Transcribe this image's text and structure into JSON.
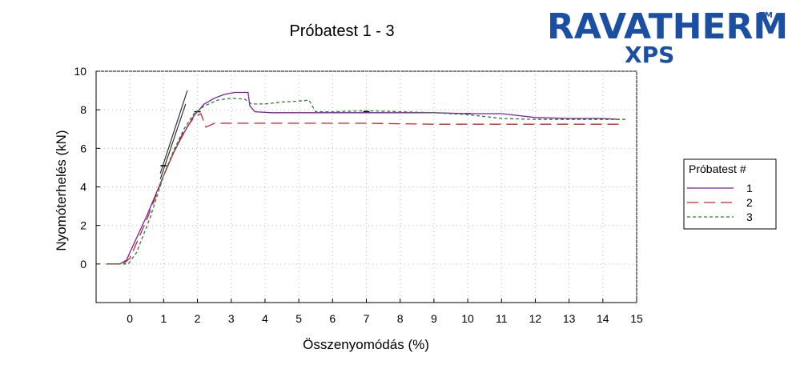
{
  "logo": {
    "brand": "RAVATHERM",
    "trademark": "TM",
    "product": "XPS",
    "color": "#1b4fa3"
  },
  "chart_data": {
    "type": "line",
    "title": "Próbatest 1 - 3",
    "xlabel": "Összenyomódás (%)",
    "ylabel": "Nyomóterhelés (kN)",
    "xlim": [
      -1.0,
      15.0
    ],
    "ylim": [
      -2.0,
      10.0
    ],
    "x_ticks": [
      0,
      1,
      2,
      3,
      4,
      5,
      6,
      7,
      8,
      9,
      10,
      11,
      12,
      13,
      14,
      15
    ],
    "y_ticks": [
      0,
      2,
      4,
      6,
      8,
      10
    ],
    "grid": true,
    "legend": {
      "title": "Próbatest #",
      "placement": "right"
    },
    "series": [
      {
        "name": "1",
        "color": "#7b1fa2",
        "dash": "solid",
        "points": [
          [
            -0.7,
            0
          ],
          [
            -0.3,
            0
          ],
          [
            -0.1,
            0.2
          ],
          [
            0.0,
            0.6
          ],
          [
            0.5,
            2.5
          ],
          [
            1.0,
            4.6
          ],
          [
            1.3,
            5.8
          ],
          [
            1.6,
            6.8
          ],
          [
            1.9,
            7.7
          ],
          [
            2.2,
            8.3
          ],
          [
            2.5,
            8.6
          ],
          [
            2.8,
            8.8
          ],
          [
            3.1,
            8.9
          ],
          [
            3.5,
            8.9
          ],
          [
            3.55,
            8.2
          ],
          [
            3.7,
            7.9
          ],
          [
            4.2,
            7.85
          ],
          [
            5.5,
            7.85
          ],
          [
            7.0,
            7.85
          ],
          [
            9.0,
            7.85
          ],
          [
            10.0,
            7.8
          ],
          [
            11.0,
            7.8
          ],
          [
            12.0,
            7.6
          ],
          [
            13.0,
            7.55
          ],
          [
            14.0,
            7.55
          ],
          [
            14.5,
            7.5
          ]
        ]
      },
      {
        "name": "2",
        "color": "#c62828",
        "dash": "long",
        "points": [
          [
            -0.7,
            0
          ],
          [
            -0.2,
            0
          ],
          [
            0.0,
            0.3
          ],
          [
            0.5,
            2.3
          ],
          [
            1.0,
            4.6
          ],
          [
            1.3,
            5.8
          ],
          [
            1.6,
            6.9
          ],
          [
            1.9,
            7.6
          ],
          [
            2.1,
            7.8
          ],
          [
            2.25,
            7.1
          ],
          [
            2.5,
            7.3
          ],
          [
            3.5,
            7.3
          ],
          [
            5.0,
            7.3
          ],
          [
            7.0,
            7.3
          ],
          [
            9.0,
            7.25
          ],
          [
            11.0,
            7.25
          ],
          [
            14.5,
            7.25
          ]
        ]
      },
      {
        "name": "3",
        "color": "#2e7d32",
        "dash": "short",
        "points": [
          [
            -0.7,
            0
          ],
          [
            -0.05,
            0
          ],
          [
            0.2,
            0.6
          ],
          [
            0.6,
            2.4
          ],
          [
            1.0,
            4.6
          ],
          [
            1.3,
            5.9
          ],
          [
            1.6,
            7.0
          ],
          [
            1.9,
            7.8
          ],
          [
            2.2,
            8.2
          ],
          [
            2.6,
            8.5
          ],
          [
            3.0,
            8.6
          ],
          [
            3.4,
            8.55
          ],
          [
            3.6,
            8.3
          ],
          [
            4.0,
            8.3
          ],
          [
            4.5,
            8.4
          ],
          [
            5.0,
            8.45
          ],
          [
            5.3,
            8.5
          ],
          [
            5.5,
            7.9
          ],
          [
            6.0,
            7.9
          ],
          [
            7.0,
            7.95
          ],
          [
            8.0,
            7.9
          ],
          [
            9.0,
            7.85
          ],
          [
            10.0,
            7.75
          ],
          [
            11.0,
            7.55
          ],
          [
            12.0,
            7.5
          ],
          [
            13.0,
            7.5
          ],
          [
            14.0,
            7.5
          ],
          [
            14.7,
            7.5
          ]
        ]
      }
    ],
    "annotations": {
      "tangent_segments": [
        {
          "from": [
            0.9,
            4.7
          ],
          "to": [
            1.7,
            9.0
          ]
        },
        {
          "from": [
            0.9,
            4.4
          ],
          "to": [
            1.65,
            8.3
          ]
        }
      ],
      "markers": [
        [
          1.0,
          5.1
        ],
        [
          2.0,
          7.9
        ],
        [
          7.0,
          7.9
        ],
        [
          10.0,
          7.8
        ]
      ]
    }
  }
}
